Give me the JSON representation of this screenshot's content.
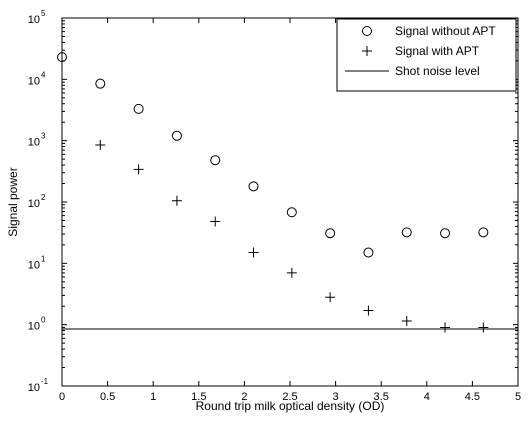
{
  "chart_data": {
    "type": "scatter",
    "title": "",
    "xlabel": "Round trip milk optical density (OD)",
    "ylabel": "Signal power",
    "xlim": [
      0,
      5
    ],
    "ylim_log10": [
      -1,
      5
    ],
    "yscale": "log",
    "grid": false,
    "legend_position": "top-right",
    "x_ticks": [
      "0",
      "0.5",
      "1",
      "1.5",
      "2",
      "2.5",
      "3",
      "3.5",
      "4",
      "4.5",
      "5"
    ],
    "y_ticks": [
      {
        "base": "10",
        "exp": "-1"
      },
      {
        "base": "10",
        "exp": "0"
      },
      {
        "base": "10",
        "exp": "1"
      },
      {
        "base": "10",
        "exp": "2"
      },
      {
        "base": "10",
        "exp": "3"
      },
      {
        "base": "10",
        "exp": "4"
      },
      {
        "base": "10",
        "exp": "5"
      }
    ],
    "series": [
      {
        "name": "Signal without APT",
        "marker": "circle",
        "x": [
          0.0,
          0.42,
          0.84,
          1.26,
          1.68,
          2.1,
          2.52,
          2.94,
          3.36,
          3.78,
          4.2,
          4.62
        ],
        "y": [
          23000,
          8500,
          3300,
          1200,
          480,
          180,
          68,
          31,
          15,
          32,
          31,
          32
        ]
      },
      {
        "name": "Signal with APT",
        "marker": "plus",
        "x": [
          0.42,
          0.84,
          1.26,
          1.68,
          2.1,
          2.52,
          2.94,
          3.36,
          3.78,
          4.2,
          4.62
        ],
        "y": [
          850,
          340,
          105,
          48,
          15,
          7,
          2.8,
          1.7,
          1.15,
          0.9,
          0.9
        ]
      },
      {
        "name": "Shot noise level",
        "marker": "line",
        "x": [
          0,
          5
        ],
        "y": [
          0.85,
          0.85
        ]
      }
    ]
  }
}
